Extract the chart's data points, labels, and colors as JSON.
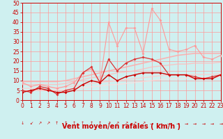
{
  "background_color": "#cff0f0",
  "grid_color": "#ff9999",
  "xlabel": "Vent moyen/en rafales ( km/h )",
  "xlim": [
    0,
    23
  ],
  "ylim": [
    0,
    50
  ],
  "yticks": [
    0,
    5,
    10,
    15,
    20,
    25,
    30,
    35,
    40,
    45,
    50
  ],
  "xticks": [
    0,
    1,
    2,
    3,
    4,
    5,
    6,
    7,
    8,
    9,
    10,
    11,
    12,
    13,
    14,
    15,
    16,
    17,
    18,
    19,
    20,
    21,
    22,
    23
  ],
  "series": [
    {
      "comment": "light pink near-linear upper line (smooth, no markers or faint)",
      "x": [
        0,
        1,
        2,
        3,
        4,
        5,
        6,
        7,
        8,
        9,
        10,
        11,
        12,
        13,
        14,
        15,
        16,
        17,
        18,
        19,
        20,
        21,
        22,
        23
      ],
      "y": [
        9.5,
        9.5,
        9.5,
        9.5,
        9.5,
        10,
        11,
        12,
        13,
        14,
        15,
        16,
        17,
        18,
        19,
        20,
        21,
        22,
        23,
        23.5,
        24,
        24,
        24,
        24
      ],
      "color": "#ffaaaa",
      "marker": "None",
      "markersize": 0,
      "linewidth": 1.2,
      "alpha": 0.85
    },
    {
      "comment": "second smooth light line slightly below",
      "x": [
        0,
        1,
        2,
        3,
        4,
        5,
        6,
        7,
        8,
        9,
        10,
        11,
        12,
        13,
        14,
        15,
        16,
        17,
        18,
        19,
        20,
        21,
        22,
        23
      ],
      "y": [
        8,
        8,
        8,
        8,
        8,
        8.5,
        9.5,
        10.5,
        11.5,
        12,
        13,
        14,
        14.5,
        15,
        16,
        17,
        17.5,
        18,
        18.5,
        18.5,
        19,
        19,
        19,
        19.5
      ],
      "color": "#ffbbbb",
      "marker": "None",
      "markersize": 0,
      "linewidth": 1.0,
      "alpha": 0.8
    },
    {
      "comment": "third smooth light line",
      "x": [
        0,
        1,
        2,
        3,
        4,
        5,
        6,
        7,
        8,
        9,
        10,
        11,
        12,
        13,
        14,
        15,
        16,
        17,
        18,
        19,
        20,
        21,
        22,
        23
      ],
      "y": [
        6,
        6,
        6.2,
        6.3,
        6.5,
        6.8,
        7.2,
        7.8,
        8.5,
        9,
        9.5,
        10,
        10.5,
        11,
        11.5,
        12,
        12.5,
        12.8,
        13,
        13,
        13.2,
        13.2,
        13.2,
        13.5
      ],
      "color": "#ffcccc",
      "marker": "None",
      "markersize": 0,
      "linewidth": 1.0,
      "alpha": 0.8
    },
    {
      "comment": "fourth smooth nearly flat line near bottom",
      "x": [
        0,
        1,
        2,
        3,
        4,
        5,
        6,
        7,
        8,
        9,
        10,
        11,
        12,
        13,
        14,
        15,
        16,
        17,
        18,
        19,
        20,
        21,
        22,
        23
      ],
      "y": [
        5,
        5,
        5.1,
        5.2,
        5.3,
        5.5,
        5.8,
        6.2,
        6.8,
        7.2,
        7.8,
        8,
        8.5,
        9,
        9.5,
        10,
        10.5,
        11,
        11,
        11.2,
        11.5,
        11.5,
        11.5,
        12
      ],
      "color": "#ffdddd",
      "marker": "None",
      "markersize": 0,
      "linewidth": 1.0,
      "alpha": 0.75
    },
    {
      "comment": "spiky line - main volatile pink with markers - big peak at x=10 (40), x=15 (47)",
      "x": [
        0,
        1,
        2,
        3,
        4,
        5,
        6,
        7,
        8,
        9,
        10,
        11,
        12,
        13,
        14,
        15,
        16,
        17,
        18,
        19,
        20,
        21,
        22,
        23
      ],
      "y": [
        9,
        7,
        8,
        7,
        6,
        7,
        9,
        14,
        16,
        9,
        40,
        28,
        37,
        37,
        24,
        47,
        41,
        26,
        25,
        26,
        28,
        22,
        21,
        23
      ],
      "color": "#ff9999",
      "marker": "D",
      "markersize": 2.0,
      "linewidth": 0.8,
      "alpha": 1.0
    },
    {
      "comment": "medium volatile line - pink markers - peak around x=15-16 ~22",
      "x": [
        0,
        1,
        2,
        3,
        4,
        5,
        6,
        7,
        8,
        9,
        10,
        11,
        12,
        13,
        14,
        15,
        16,
        17,
        18,
        19,
        20,
        21,
        22,
        23
      ],
      "y": [
        5,
        4,
        7,
        6,
        3,
        5,
        6,
        14,
        17,
        9,
        21,
        15,
        19,
        21,
        22,
        21,
        19,
        13,
        13,
        13,
        12,
        11,
        12,
        13
      ],
      "color": "#dd3333",
      "marker": "D",
      "markersize": 2.0,
      "linewidth": 0.9,
      "alpha": 1.0
    },
    {
      "comment": "dark red line with markers - mostly flat low then rises",
      "x": [
        0,
        1,
        2,
        3,
        4,
        5,
        6,
        7,
        8,
        9,
        10,
        11,
        12,
        13,
        14,
        15,
        16,
        17,
        18,
        19,
        20,
        21,
        22,
        23
      ],
      "y": [
        4,
        5,
        6,
        5,
        4,
        4,
        5,
        8,
        10,
        9,
        13,
        10,
        12,
        13,
        14,
        14,
        14,
        13,
        13,
        13,
        11,
        11,
        11,
        13
      ],
      "color": "#cc0000",
      "marker": "D",
      "markersize": 2.0,
      "linewidth": 1.0,
      "alpha": 1.0
    }
  ],
  "wind_arrows": [
    "↓",
    "↙",
    "↗",
    "↗",
    "↑",
    "↑",
    "↑",
    "↑",
    "↑",
    "↑",
    "↗",
    "↗",
    "↗",
    "↗",
    "↗",
    "→",
    "→",
    "→",
    "→",
    "→",
    "→",
    "→",
    "→",
    "→"
  ],
  "xlabel_fontsize": 7,
  "tick_fontsize": 5.5
}
